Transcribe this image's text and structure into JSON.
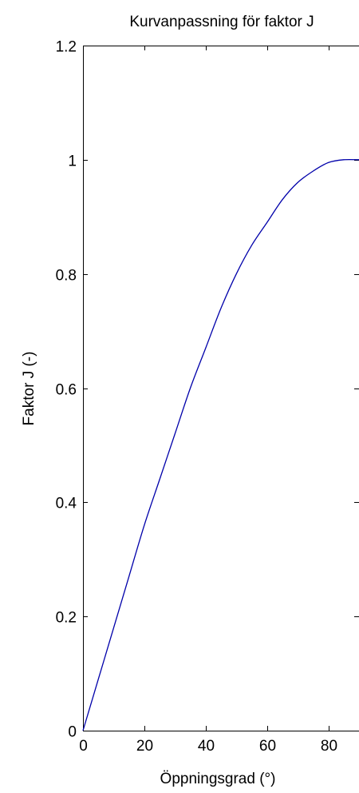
{
  "chart_data": {
    "type": "line",
    "title": "Kurvanpassning för faktor J",
    "xlabel": "Öppningsgrad (°)",
    "ylabel": "Faktor J (-)",
    "xlim": [
      0,
      90
    ],
    "ylim": [
      0,
      1.2
    ],
    "x_ticks": [
      0,
      20,
      40,
      60,
      80
    ],
    "y_ticks": [
      0,
      0.2,
      0.4,
      0.6,
      0.8,
      1,
      1.2
    ],
    "x_tick_labels": [
      "0",
      "20",
      "40",
      "60",
      "80"
    ],
    "y_tick_labels": [
      "0",
      "0.2",
      "0.4",
      "0.6",
      "0.8",
      "1",
      "1.2"
    ],
    "grid": false,
    "series": [
      {
        "color": "#0000aa",
        "x": [
          0,
          5,
          10,
          15,
          20,
          25,
          30,
          35,
          40,
          45,
          50,
          55,
          60,
          65,
          70,
          75,
          80,
          85,
          90
        ],
        "y": [
          0.0,
          0.09,
          0.18,
          0.27,
          0.36,
          0.44,
          0.52,
          0.6,
          0.67,
          0.74,
          0.8,
          0.85,
          0.89,
          0.93,
          0.96,
          0.98,
          0.995,
          1.0,
          1.0
        ]
      }
    ]
  }
}
